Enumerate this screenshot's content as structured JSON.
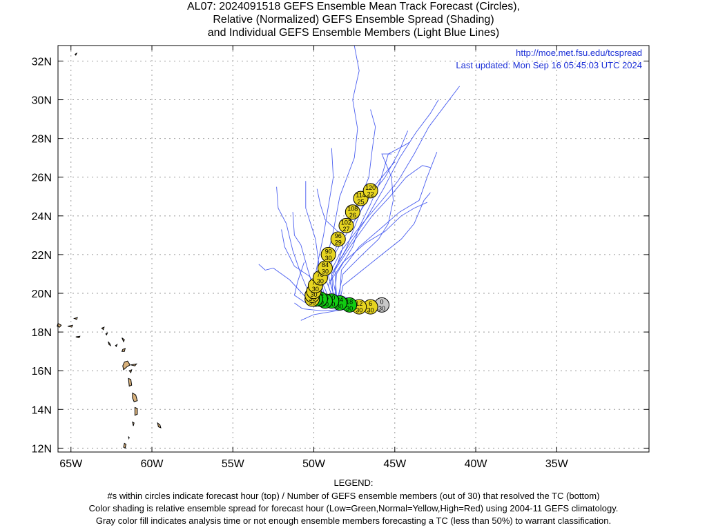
{
  "title": {
    "line1": "AL07: 2024091518 GEFS Ensemble Mean Track Forecast (Circles),",
    "line2": "Relative (Normalized) GEFS Ensemble Spread (Shading)",
    "line3": "and Individual GEFS Ensemble Members (Light Blue Lines)"
  },
  "credits": {
    "url": "http://moe.met.fsu.edu/tcspread",
    "updated": "Last updated: Mon Sep 16 05:45:03 UTC 2024"
  },
  "axes": {
    "lat_labels": [
      "32N",
      "30N",
      "28N",
      "26N",
      "24N",
      "22N",
      "20N",
      "18N",
      "16N",
      "14N",
      "12N"
    ],
    "lat_values": [
      32,
      30,
      28,
      26,
      24,
      22,
      20,
      18,
      16,
      14,
      12
    ],
    "lon_labels": [
      "65W",
      "60W",
      "55W",
      "50W",
      "45W",
      "40W",
      "35W"
    ],
    "lon_values": [
      -65,
      -60,
      -55,
      -50,
      -45,
      -40,
      -35
    ],
    "lat_range": [
      11.8,
      32.8
    ],
    "lon_range": [
      -65.8,
      -29.3
    ],
    "grid": true
  },
  "colors": {
    "member_track": "#4a5ef0",
    "low_spread": "#11cc11",
    "normal_spread": "#e6d420",
    "analysis_gray": "#c8c8c8",
    "land": "#d9b27c",
    "credit_text": "#1b2fd6"
  },
  "mean_track": [
    {
      "hour": "0",
      "members": "30",
      "lon": -45.8,
      "lat": 19.4,
      "class": "gray"
    },
    {
      "hour": "6",
      "members": "30",
      "lon": -46.5,
      "lat": 19.3,
      "class": "yellow"
    },
    {
      "hour": "12",
      "members": "30",
      "lon": -47.2,
      "lat": 19.3,
      "class": "yellow"
    },
    {
      "hour": "18",
      "members": "30",
      "lon": -47.8,
      "lat": 19.4,
      "class": "green"
    },
    {
      "hour": "24",
      "members": "30",
      "lon": -48.4,
      "lat": 19.5,
      "class": "green"
    },
    {
      "hour": "30",
      "members": "30",
      "lon": -48.9,
      "lat": 19.6,
      "class": "green"
    },
    {
      "hour": "36",
      "members": "30",
      "lon": -49.3,
      "lat": 19.6,
      "class": "green"
    },
    {
      "hour": "42",
      "members": "30",
      "lon": -49.6,
      "lat": 19.7,
      "class": "green"
    },
    {
      "hour": "48",
      "members": "30",
      "lon": -49.9,
      "lat": 19.7,
      "class": "green"
    },
    {
      "hour": "54",
      "members": "30",
      "lon": -50.1,
      "lat": 19.7,
      "class": "yellow"
    },
    {
      "hour": "60",
      "members": "30",
      "lon": -50.1,
      "lat": 19.9,
      "class": "yellow"
    },
    {
      "hour": "66",
      "members": "30",
      "lon": -50.0,
      "lat": 20.1,
      "class": "yellow"
    },
    {
      "hour": "72",
      "members": "30",
      "lon": -49.9,
      "lat": 20.4,
      "class": "yellow"
    },
    {
      "hour": "78",
      "members": "30",
      "lon": -49.6,
      "lat": 20.8,
      "class": "yellow"
    },
    {
      "hour": "84",
      "members": "30",
      "lon": -49.3,
      "lat": 21.3,
      "class": "yellow"
    },
    {
      "hour": "90",
      "members": "30",
      "lon": -49.1,
      "lat": 22.0,
      "class": "yellow"
    },
    {
      "hour": "96",
      "members": "29",
      "lon": -48.5,
      "lat": 22.8,
      "class": "yellow"
    },
    {
      "hour": "102",
      "members": "27",
      "lon": -48.0,
      "lat": 23.5,
      "class": "yellow"
    },
    {
      "hour": "108",
      "members": "26",
      "lon": -47.6,
      "lat": 24.2,
      "class": "yellow"
    },
    {
      "hour": "114",
      "members": "25",
      "lon": -47.1,
      "lat": 24.9,
      "class": "yellow"
    },
    {
      "hour": "120",
      "members": "22",
      "lon": -46.5,
      "lat": 25.3,
      "class": "yellow"
    }
  ],
  "member_tracks": [
    [
      [
        -45.8,
        19.4
      ],
      [
        -47.5,
        19.4
      ],
      [
        -49.5,
        19.5
      ],
      [
        -50.3,
        20.0
      ],
      [
        -50.8,
        21.0
      ],
      [
        -51.3,
        22.2
      ],
      [
        -51.7,
        23.6
      ],
      [
        -52.2,
        24.4
      ],
      [
        -52.3,
        25.5
      ]
    ],
    [
      [
        -45.8,
        19.4
      ],
      [
        -47.6,
        19.3
      ],
      [
        -49.6,
        19.4
      ],
      [
        -50.5,
        19.8
      ],
      [
        -51.5,
        20.7
      ],
      [
        -52.5,
        21.3
      ],
      [
        -53.0,
        21.2
      ],
      [
        -53.4,
        21.5
      ]
    ],
    [
      [
        -45.8,
        19.4
      ],
      [
        -47.4,
        19.4
      ],
      [
        -49.3,
        19.5
      ],
      [
        -50.0,
        20.2
      ],
      [
        -50.4,
        21.3
      ],
      [
        -50.8,
        22.5
      ],
      [
        -51.2,
        23.0
      ],
      [
        -51.3,
        24.2
      ]
    ],
    [
      [
        -45.8,
        19.4
      ],
      [
        -47.3,
        19.4
      ],
      [
        -49.2,
        19.6
      ],
      [
        -49.8,
        20.4
      ],
      [
        -49.7,
        21.6
      ],
      [
        -49.9,
        22.8
      ],
      [
        -50.2,
        23.6
      ],
      [
        -50.5,
        24.4
      ],
      [
        -50.5,
        25.8
      ]
    ],
    [
      [
        -45.8,
        19.4
      ],
      [
        -47.5,
        19.3
      ],
      [
        -49.4,
        19.5
      ],
      [
        -50.1,
        20.1
      ],
      [
        -49.8,
        21.4
      ],
      [
        -49.4,
        23.0
      ],
      [
        -49.1,
        24.5
      ],
      [
        -48.8,
        26.0
      ],
      [
        -48.9,
        27.5
      ]
    ],
    [
      [
        -45.8,
        19.4
      ],
      [
        -47.4,
        19.4
      ],
      [
        -49.2,
        19.6
      ],
      [
        -49.6,
        20.6
      ],
      [
        -49.2,
        21.8
      ],
      [
        -48.8,
        23.2
      ],
      [
        -48.4,
        25.0
      ],
      [
        -47.5,
        27.0
      ],
      [
        -47.3,
        28.5
      ],
      [
        -47.6,
        30.0
      ],
      [
        -47.2,
        31.5
      ],
      [
        -47.5,
        32.8
      ]
    ],
    [
      [
        -45.8,
        19.4
      ],
      [
        -47.3,
        19.4
      ],
      [
        -49.0,
        19.6
      ],
      [
        -49.5,
        20.6
      ],
      [
        -48.9,
        21.9
      ],
      [
        -48.0,
        23.4
      ],
      [
        -47.2,
        24.8
      ],
      [
        -46.6,
        26.0
      ],
      [
        -46.4,
        27.4
      ],
      [
        -46.2,
        28.6
      ],
      [
        -46.5,
        29.5
      ]
    ],
    [
      [
        -45.8,
        19.4
      ],
      [
        -47.2,
        19.4
      ],
      [
        -48.8,
        19.7
      ],
      [
        -49.3,
        20.8
      ],
      [
        -48.6,
        22.2
      ],
      [
        -47.6,
        23.6
      ],
      [
        -46.7,
        24.8
      ],
      [
        -45.6,
        26.0
      ],
      [
        -44.8,
        27.2
      ],
      [
        -44.2,
        28.4
      ]
    ],
    [
      [
        -45.8,
        19.4
      ],
      [
        -47.0,
        19.4
      ],
      [
        -48.7,
        19.7
      ],
      [
        -49.1,
        20.9
      ],
      [
        -48.3,
        22.2
      ],
      [
        -47.2,
        23.4
      ],
      [
        -46.0,
        24.6
      ],
      [
        -44.8,
        25.8
      ],
      [
        -43.8,
        27.2
      ],
      [
        -42.9,
        28.6
      ],
      [
        -42.0,
        29.6
      ],
      [
        -41.0,
        30.7
      ]
    ],
    [
      [
        -45.8,
        19.4
      ],
      [
        -47.1,
        19.4
      ],
      [
        -48.6,
        19.8
      ],
      [
        -48.9,
        21.0
      ],
      [
        -47.9,
        22.4
      ],
      [
        -46.8,
        23.8
      ],
      [
        -45.7,
        25.4
      ],
      [
        -44.7,
        27.0
      ],
      [
        -43.7,
        28.3
      ],
      [
        -42.8,
        29.3
      ],
      [
        -42.3,
        30.0
      ]
    ],
    [
      [
        -45.8,
        19.4
      ],
      [
        -47.2,
        19.5
      ],
      [
        -48.6,
        19.9
      ],
      [
        -48.7,
        21.2
      ],
      [
        -47.6,
        22.6
      ],
      [
        -46.4,
        24.0
      ],
      [
        -45.3,
        25.0
      ],
      [
        -44.3,
        26.0
      ],
      [
        -43.3,
        26.6
      ],
      [
        -42.8,
        26.5
      ]
    ],
    [
      [
        -45.8,
        19.4
      ],
      [
        -47.0,
        19.5
      ],
      [
        -48.4,
        19.9
      ],
      [
        -48.3,
        21.2
      ],
      [
        -47.2,
        22.4
      ],
      [
        -45.8,
        23.4
      ],
      [
        -44.7,
        24.2
      ],
      [
        -43.5,
        24.8
      ],
      [
        -43.0,
        26.0
      ],
      [
        -42.4,
        27.3
      ]
    ],
    [
      [
        -45.8,
        19.4
      ],
      [
        -47.0,
        19.4
      ],
      [
        -48.5,
        19.8
      ],
      [
        -48.2,
        21.0
      ],
      [
        -47.0,
        22.0
      ],
      [
        -46.0,
        22.8
      ],
      [
        -45.4,
        23.6
      ],
      [
        -45.1,
        24.8
      ],
      [
        -45.2,
        26.0
      ],
      [
        -45.8,
        27.2
      ],
      [
        -45.2,
        27.2
      ]
    ],
    [
      [
        -45.8,
        19.4
      ],
      [
        -47.1,
        19.4
      ],
      [
        -48.7,
        19.7
      ],
      [
        -49.0,
        20.6
      ],
      [
        -48.2,
        21.6
      ],
      [
        -46.8,
        22.6
      ],
      [
        -45.6,
        23.2
      ],
      [
        -44.6,
        24.0
      ],
      [
        -43.8,
        24.4
      ],
      [
        -43.0,
        24.7
      ]
    ],
    [
      [
        -45.8,
        19.4
      ],
      [
        -47.3,
        19.3
      ],
      [
        -48.9,
        19.5
      ],
      [
        -49.6,
        20.2
      ],
      [
        -50.3,
        20.9
      ],
      [
        -51.2,
        21.4
      ],
      [
        -51.8,
        22.4
      ],
      [
        -52.0,
        23.3
      ]
    ],
    [
      [
        -45.8,
        19.4
      ],
      [
        -47.4,
        19.3
      ],
      [
        -49.3,
        19.3
      ],
      [
        -50.5,
        19.5
      ],
      [
        -51.2,
        19.9
      ],
      [
        -51.0,
        20.6
      ],
      [
        -50.6,
        21.6
      ]
    ],
    [
      [
        -45.8,
        19.4
      ],
      [
        -47.0,
        19.3
      ],
      [
        -48.6,
        19.1
      ],
      [
        -50.0,
        18.9
      ],
      [
        -50.8,
        18.6
      ]
    ],
    [
      [
        -45.8,
        19.4
      ],
      [
        -47.2,
        19.4
      ],
      [
        -48.8,
        19.6
      ],
      [
        -49.1,
        20.4
      ],
      [
        -48.5,
        21.6
      ],
      [
        -48.2,
        22.4
      ],
      [
        -48.4,
        23.1
      ],
      [
        -49.3,
        23.8
      ],
      [
        -49.6,
        24.6
      ],
      [
        -49.8,
        25.4
      ]
    ],
    [
      [
        -45.8,
        19.4
      ],
      [
        -47.3,
        19.4
      ],
      [
        -48.8,
        19.7
      ],
      [
        -48.9,
        21.0
      ],
      [
        -48.0,
        22.3
      ],
      [
        -47.4,
        23.6
      ],
      [
        -46.9,
        24.7
      ],
      [
        -46.2,
        25.6
      ],
      [
        -45.5,
        26.3
      ],
      [
        -45.0,
        26.8
      ]
    ],
    [
      [
        -45.8,
        19.4
      ],
      [
        -47.6,
        19.2
      ],
      [
        -49.5,
        19.1
      ],
      [
        -50.7,
        19.2
      ],
      [
        -51.2,
        19.5
      ]
    ],
    [
      [
        -45.8,
        19.4
      ],
      [
        -47.2,
        19.5
      ],
      [
        -48.7,
        19.8
      ],
      [
        -48.6,
        21.0
      ],
      [
        -47.6,
        22.4
      ],
      [
        -47.2,
        23.4
      ],
      [
        -46.5,
        24.6
      ],
      [
        -45.9,
        25.8
      ],
      [
        -45.4,
        27.2
      ],
      [
        -44.5,
        27.6
      ],
      [
        -44.1,
        27.8
      ]
    ],
    [
      [
        -45.8,
        19.4
      ],
      [
        -47.0,
        19.4
      ],
      [
        -48.4,
        19.6
      ],
      [
        -48.2,
        20.4
      ],
      [
        -47.0,
        21.2
      ],
      [
        -45.8,
        22.0
      ],
      [
        -44.6,
        22.8
      ],
      [
        -43.8,
        23.6
      ],
      [
        -43.2,
        24.8
      ],
      [
        -42.8,
        25.2
      ]
    ]
  ],
  "islands": [
    [
      [
        -65.8,
        18.45
      ],
      [
        -65.6,
        18.35
      ],
      [
        -65.7,
        18.25
      ],
      [
        -65.85,
        18.3
      ]
    ],
    [
      [
        -65.2,
        18.3
      ],
      [
        -64.9,
        18.35
      ],
      [
        -64.95,
        18.25
      ]
    ],
    [
      [
        -64.8,
        18.7
      ],
      [
        -64.6,
        18.75
      ],
      [
        -64.65,
        18.65
      ]
    ],
    [
      [
        -64.7,
        17.75
      ],
      [
        -64.45,
        17.78
      ],
      [
        -64.5,
        17.7
      ]
    ],
    [
      [
        -63.1,
        18.2
      ],
      [
        -62.95,
        18.25
      ],
      [
        -63.0,
        18.12
      ]
    ],
    [
      [
        -62.85,
        17.9
      ],
      [
        -62.75,
        17.95
      ],
      [
        -62.8,
        17.85
      ]
    ],
    [
      [
        -62.7,
        17.5
      ],
      [
        -62.6,
        17.4
      ],
      [
        -62.55,
        17.3
      ],
      [
        -62.65,
        17.35
      ]
    ],
    [
      [
        -62.25,
        17.3
      ],
      [
        -62.15,
        17.35
      ],
      [
        -62.2,
        17.25
      ]
    ],
    [
      [
        -61.85,
        17.7
      ],
      [
        -61.7,
        17.6
      ],
      [
        -61.75,
        17.5
      ]
    ],
    [
      [
        -61.8,
        17.1
      ],
      [
        -61.65,
        17.15
      ],
      [
        -61.7,
        17.0
      ],
      [
        -61.85,
        17.0
      ]
    ],
    [
      [
        -61.7,
        16.45
      ],
      [
        -61.5,
        16.5
      ],
      [
        -61.35,
        16.3
      ],
      [
        -61.55,
        16.2
      ],
      [
        -61.75,
        16.05
      ],
      [
        -61.8,
        16.25
      ]
    ],
    [
      [
        -61.4,
        16.0
      ],
      [
        -61.25,
        16.05
      ],
      [
        -61.3,
        15.9
      ]
    ],
    [
      [
        -61.45,
        15.6
      ],
      [
        -61.3,
        15.55
      ],
      [
        -61.25,
        15.25
      ],
      [
        -61.4,
        15.2
      ]
    ],
    [
      [
        -61.2,
        14.85
      ],
      [
        -61.0,
        14.75
      ],
      [
        -60.9,
        14.45
      ],
      [
        -61.1,
        14.4
      ],
      [
        -61.2,
        14.6
      ]
    ],
    [
      [
        -61.05,
        14.1
      ],
      [
        -60.9,
        14.05
      ],
      [
        -60.9,
        13.75
      ],
      [
        -61.05,
        13.7
      ]
    ],
    [
      [
        -61.2,
        13.35
      ],
      [
        -61.1,
        13.3
      ],
      [
        -61.15,
        13.15
      ]
    ],
    [
      [
        -59.65,
        13.3
      ],
      [
        -59.5,
        13.2
      ],
      [
        -59.45,
        13.05
      ],
      [
        -59.6,
        13.1
      ]
    ],
    [
      [
        -61.7,
        12.25
      ],
      [
        -61.6,
        12.2
      ],
      [
        -61.65,
        12.0
      ],
      [
        -61.75,
        12.05
      ]
    ],
    [
      [
        -61.45,
        12.6
      ],
      [
        -61.4,
        12.55
      ],
      [
        -61.42,
        12.5
      ]
    ],
    [
      [
        -61.3,
        16.3
      ],
      [
        -60.95,
        16.35
      ],
      [
        -61.05,
        16.25
      ]
    ],
    [
      [
        -64.75,
        32.35
      ],
      [
        -64.65,
        32.4
      ],
      [
        -64.7,
        32.3
      ]
    ]
  ]
}
